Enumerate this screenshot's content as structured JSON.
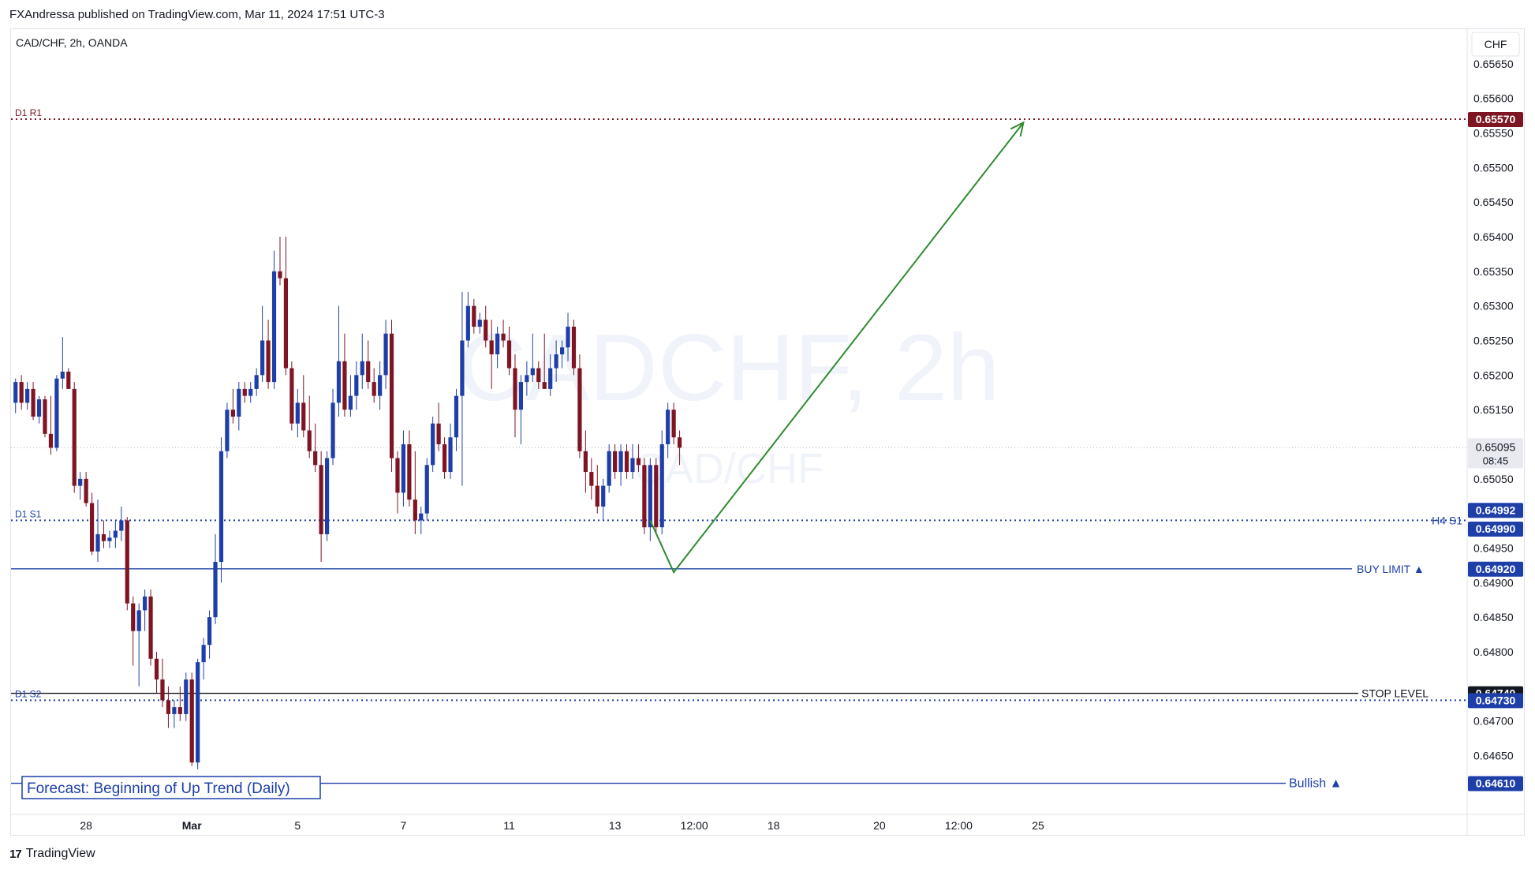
{
  "header": {
    "publish_info": "FXAndressa published on TradingView.com, Mar 11, 2024 17:51 UTC-3"
  },
  "footer": {
    "logo_text": "TradingView"
  },
  "watermark": {
    "line1": "CADCHF, 2h",
    "line2": "CAD/CHF"
  },
  "colors": {
    "up_candle": "#1e3fa8",
    "down_candle": "#7d1523",
    "arrow": "#2e8b2e",
    "pivot_r": "#7d1523",
    "pivot_s": "#1e3fa8",
    "buy_limit": "#1e3fa8",
    "stop_level": "#131722",
    "bullish": "#1e3fa8",
    "current_price": "#e8eaef"
  },
  "chart_data": {
    "type": "candlestick",
    "symbol_label": "CAD/CHF, 2h, OANDA",
    "currency_label": "CHF",
    "ylim": [
      0.64565,
      0.657
    ],
    "y_ticks": [
      "0.65650",
      "0.65600",
      "0.65550",
      "0.65500",
      "0.65450",
      "0.65400",
      "0.65350",
      "0.65300",
      "0.65250",
      "0.65200",
      "0.65150",
      "0.65050",
      "0.64950",
      "0.64900",
      "0.64850",
      "0.64800",
      "0.64700",
      "0.64650"
    ],
    "x_ticks": [
      {
        "label": "28",
        "slot": 12.5
      },
      {
        "label": "Mar",
        "slot": 30.5
      },
      {
        "label": "5",
        "slot": 48.5
      },
      {
        "label": "7",
        "slot": 66.5
      },
      {
        "label": "11",
        "slot": 84.5
      },
      {
        "label": "13",
        "slot": 102.5
      },
      {
        "label": "12:00",
        "slot": 116
      },
      {
        "label": "18",
        "slot": 129.5
      },
      {
        "label": "20",
        "slot": 147.5
      },
      {
        "label": "12:00",
        "slot": 161
      },
      {
        "label": "25",
        "slot": 174.5
      }
    ],
    "candles": [
      [
        0.6516,
        0.65195,
        0.65145,
        0.6519
      ],
      [
        0.6519,
        0.652,
        0.6515,
        0.6516
      ],
      [
        0.6516,
        0.6519,
        0.6515,
        0.6518
      ],
      [
        0.6518,
        0.6519,
        0.65135,
        0.6514
      ],
      [
        0.6514,
        0.6517,
        0.6513,
        0.65165
      ],
      [
        0.65165,
        0.6517,
        0.6511,
        0.65115
      ],
      [
        0.65115,
        0.6517,
        0.65085,
        0.65095
      ],
      [
        0.65095,
        0.652,
        0.6509,
        0.65195
      ],
      [
        0.65195,
        0.65255,
        0.6518,
        0.65205
      ],
      [
        0.65205,
        0.6521,
        0.6518,
        0.6518
      ],
      [
        0.6518,
        0.6519,
        0.6503,
        0.6504
      ],
      [
        0.6504,
        0.6506,
        0.6502,
        0.6505
      ],
      [
        0.6505,
        0.6506,
        0.6501,
        0.65015
      ],
      [
        0.65015,
        0.6503,
        0.6494,
        0.64945
      ],
      [
        0.64945,
        0.6502,
        0.6493,
        0.6497
      ],
      [
        0.6497,
        0.6499,
        0.6495,
        0.6496
      ],
      [
        0.6496,
        0.64975,
        0.6495,
        0.64965
      ],
      [
        0.64965,
        0.6499,
        0.6495,
        0.64975
      ],
      [
        0.64975,
        0.6501,
        0.6496,
        0.6499
      ],
      [
        0.6499,
        0.64995,
        0.6486,
        0.6487
      ],
      [
        0.6487,
        0.6488,
        0.6478,
        0.6483
      ],
      [
        0.6483,
        0.6487,
        0.6475,
        0.6486
      ],
      [
        0.6486,
        0.6489,
        0.6483,
        0.6488
      ],
      [
        0.6488,
        0.6489,
        0.6478,
        0.6479
      ],
      [
        0.6479,
        0.648,
        0.6474,
        0.6476
      ],
      [
        0.6476,
        0.6479,
        0.6472,
        0.6473
      ],
      [
        0.6473,
        0.6475,
        0.6469,
        0.6471
      ],
      [
        0.6471,
        0.6473,
        0.6469,
        0.6472
      ],
      [
        0.6472,
        0.6475,
        0.647,
        0.6471
      ],
      [
        0.6471,
        0.6477,
        0.647,
        0.6476
      ],
      [
        0.6476,
        0.6477,
        0.64635,
        0.6464
      ],
      [
        0.6464,
        0.6479,
        0.6463,
        0.64785
      ],
      [
        0.64785,
        0.6482,
        0.6476,
        0.6481
      ],
      [
        0.6481,
        0.6486,
        0.6479,
        0.6485
      ],
      [
        0.6485,
        0.6497,
        0.6484,
        0.6493
      ],
      [
        0.6493,
        0.6511,
        0.649,
        0.6509
      ],
      [
        0.6509,
        0.6516,
        0.6508,
        0.6515
      ],
      [
        0.6515,
        0.6518,
        0.6513,
        0.6514
      ],
      [
        0.6514,
        0.6519,
        0.6512,
        0.6518
      ],
      [
        0.6518,
        0.6519,
        0.6516,
        0.6517
      ],
      [
        0.6517,
        0.6519,
        0.6516,
        0.6518
      ],
      [
        0.6518,
        0.6521,
        0.6517,
        0.652
      ],
      [
        0.652,
        0.653,
        0.6519,
        0.6525
      ],
      [
        0.6525,
        0.6528,
        0.6518,
        0.6519
      ],
      [
        0.6519,
        0.6538,
        0.6518,
        0.6535
      ],
      [
        0.6535,
        0.654,
        0.6533,
        0.6534
      ],
      [
        0.6534,
        0.654,
        0.652,
        0.6521
      ],
      [
        0.6521,
        0.6522,
        0.6512,
        0.6513
      ],
      [
        0.6513,
        0.6518,
        0.6511,
        0.6516
      ],
      [
        0.6516,
        0.652,
        0.6511,
        0.6512
      ],
      [
        0.6512,
        0.6517,
        0.6508,
        0.6509
      ],
      [
        0.6509,
        0.6513,
        0.6506,
        0.6507
      ],
      [
        0.6507,
        0.6509,
        0.6493,
        0.6497
      ],
      [
        0.6497,
        0.6509,
        0.6496,
        0.6508
      ],
      [
        0.6508,
        0.6518,
        0.6507,
        0.6516
      ],
      [
        0.6516,
        0.653,
        0.6514,
        0.6522
      ],
      [
        0.6522,
        0.6526,
        0.6514,
        0.6515
      ],
      [
        0.6515,
        0.652,
        0.6514,
        0.6517
      ],
      [
        0.6517,
        0.6522,
        0.6515,
        0.652
      ],
      [
        0.652,
        0.6526,
        0.6518,
        0.6522
      ],
      [
        0.6522,
        0.6525,
        0.6518,
        0.6519
      ],
      [
        0.6519,
        0.6521,
        0.6516,
        0.6517
      ],
      [
        0.6517,
        0.6522,
        0.6515,
        0.652
      ],
      [
        0.652,
        0.6528,
        0.6518,
        0.6526
      ],
      [
        0.6526,
        0.6528,
        0.6506,
        0.6508
      ],
      [
        0.6508,
        0.6509,
        0.65,
        0.6503
      ],
      [
        0.6503,
        0.6512,
        0.6501,
        0.651
      ],
      [
        0.651,
        0.6512,
        0.6501,
        0.6502
      ],
      [
        0.6502,
        0.6509,
        0.6497,
        0.6499
      ],
      [
        0.6499,
        0.6501,
        0.6497,
        0.65
      ],
      [
        0.65,
        0.6508,
        0.6499,
        0.6507
      ],
      [
        0.6507,
        0.6514,
        0.6506,
        0.6513
      ],
      [
        0.6513,
        0.6516,
        0.6509,
        0.651
      ],
      [
        0.651,
        0.6511,
        0.6505,
        0.6506
      ],
      [
        0.6506,
        0.6513,
        0.6505,
        0.6511
      ],
      [
        0.6511,
        0.6518,
        0.6509,
        0.6517
      ],
      [
        0.6517,
        0.6532,
        0.6504,
        0.6525
      ],
      [
        0.6525,
        0.6532,
        0.6524,
        0.653
      ],
      [
        0.653,
        0.6531,
        0.6526,
        0.6527
      ],
      [
        0.6527,
        0.6529,
        0.6526,
        0.6528
      ],
      [
        0.6528,
        0.653,
        0.6524,
        0.6525
      ],
      [
        0.6525,
        0.6528,
        0.6518,
        0.6523
      ],
      [
        0.6523,
        0.6527,
        0.6521,
        0.6526
      ],
      [
        0.6526,
        0.6528,
        0.6524,
        0.6525
      ],
      [
        0.6525,
        0.6527,
        0.652,
        0.6521
      ],
      [
        0.6521,
        0.6523,
        0.6511,
        0.6515
      ],
      [
        0.6515,
        0.652,
        0.651,
        0.6519
      ],
      [
        0.6519,
        0.6522,
        0.6517,
        0.652
      ],
      [
        0.652,
        0.6526,
        0.6519,
        0.6521
      ],
      [
        0.6521,
        0.6522,
        0.6518,
        0.6519
      ],
      [
        0.6519,
        0.6526,
        0.6518,
        0.6518
      ],
      [
        0.6518,
        0.6523,
        0.6517,
        0.6521
      ],
      [
        0.6521,
        0.6525,
        0.6519,
        0.6523
      ],
      [
        0.6523,
        0.6525,
        0.6521,
        0.6524
      ],
      [
        0.6524,
        0.6529,
        0.6522,
        0.6527
      ],
      [
        0.6527,
        0.6528,
        0.652,
        0.6521
      ],
      [
        0.6521,
        0.6523,
        0.6508,
        0.6509
      ],
      [
        0.6509,
        0.6512,
        0.6503,
        0.6506
      ],
      [
        0.6506,
        0.6508,
        0.6502,
        0.6504
      ],
      [
        0.6504,
        0.6507,
        0.65,
        0.6501
      ],
      [
        0.6501,
        0.6505,
        0.6499,
        0.6504
      ],
      [
        0.6504,
        0.651,
        0.6503,
        0.6509
      ],
      [
        0.6509,
        0.651,
        0.6505,
        0.6506
      ],
      [
        0.6506,
        0.651,
        0.6504,
        0.6509
      ],
      [
        0.6509,
        0.651,
        0.6505,
        0.6506
      ],
      [
        0.6506,
        0.651,
        0.6505,
        0.6508
      ],
      [
        0.6508,
        0.651,
        0.6506,
        0.6507
      ],
      [
        0.6507,
        0.6508,
        0.6497,
        0.6498
      ],
      [
        0.6498,
        0.6508,
        0.6496,
        0.6507
      ],
      [
        0.6507,
        0.6508,
        0.6497,
        0.6498
      ],
      [
        0.6498,
        0.6512,
        0.6497,
        0.651
      ],
      [
        0.651,
        0.6516,
        0.6508,
        0.6515
      ],
      [
        0.6515,
        0.6516,
        0.651,
        0.6511
      ],
      [
        0.6511,
        0.6512,
        0.6507,
        0.65095
      ]
    ],
    "levels": [
      {
        "kind": "pivot",
        "left_label": "D1 R1",
        "value": 0.6557,
        "price_label": "0.65570",
        "style": "dotted",
        "colorKey": "pivot_r"
      },
      {
        "kind": "pivot",
        "left_label": "D1 S1",
        "right_label": "H4 S1",
        "value": 0.6499,
        "price_label": "0.64990",
        "price_label_2": "0.64992",
        "style": "dotted",
        "colorKey": "pivot_s"
      },
      {
        "kind": "line",
        "right_label": "BUY LIMIT ▲",
        "value": 0.6492,
        "price_label": "0.64920",
        "style": "solid",
        "colorKey": "buy_limit"
      },
      {
        "kind": "line",
        "right_label": "STOP LEVEL",
        "value": 0.6474,
        "price_label": "0.64740",
        "style": "solid",
        "colorKey": "stop_level"
      },
      {
        "kind": "pivot",
        "left_label": "D1 S2",
        "value": 0.6473,
        "price_label": "0.64730",
        "style": "dotted",
        "colorKey": "pivot_s"
      },
      {
        "kind": "line",
        "right_label": "Bullish ▲",
        "value": 0.6461,
        "price_label": "0.64610",
        "style": "solid",
        "colorKey": "bullish"
      }
    ],
    "current_price": {
      "value": 0.65095,
      "label": "0.65095",
      "countdown": "08:45"
    },
    "forecast_path": [
      {
        "slot": 108.5,
        "price": 0.6499
      },
      {
        "slot": 112.5,
        "price": 0.64915
      },
      {
        "slot": 172,
        "price": 0.65565
      }
    ],
    "annotation": "Forecast: Beginning of Up Trend (Daily)"
  }
}
